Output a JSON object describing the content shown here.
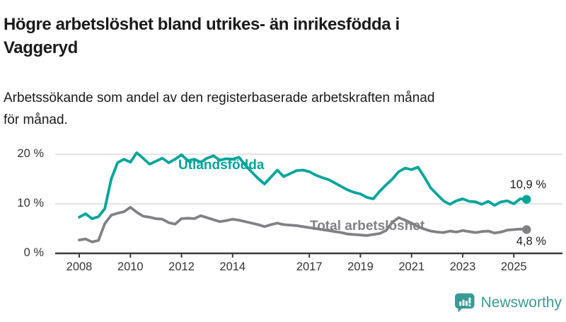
{
  "header": {
    "title_lines": [
      "Högre arbetslöshet bland utrikes- än inrikesfödda i",
      "Vaggeryd"
    ],
    "subtitle_lines": [
      "Arbetssökande som andel av den registerbaserade arbetskraften månad",
      "för månad."
    ]
  },
  "branding": {
    "logo_text": "Newsworthy"
  },
  "colors": {
    "background": "#ffffff",
    "title": "#1a1a1a",
    "grid": "#dcdcdc",
    "axis": "#3b3b3b",
    "tick_label": "#333333",
    "end_label": "#1a1a1a",
    "logo": "#3a9a94"
  },
  "chart_data": {
    "type": "line",
    "title": "Högre arbetslöshet bland utrikes- än inrikesfödda i Vaggeryd",
    "subtitle": "Arbetssökande som andel av den registerbaserade arbetskraften månad för månad.",
    "unit": "%",
    "grid": "horizontal",
    "legend_position": "inline-labels",
    "ylim": [
      0,
      21.5
    ],
    "xlim": [
      2007.1,
      2026.9
    ],
    "y_ticks": [
      {
        "v": 0,
        "label": "0 %"
      },
      {
        "v": 10,
        "label": "10 %"
      },
      {
        "v": 20,
        "label": "20 %"
      }
    ],
    "x_ticks": [
      {
        "v": 2008,
        "label": "2008"
      },
      {
        "v": 2010,
        "label": "2010"
      },
      {
        "v": 2012,
        "label": "2012"
      },
      {
        "v": 2014,
        "label": "2014"
      },
      {
        "v": 2017,
        "label": "2017"
      },
      {
        "v": 2019,
        "label": "2019"
      },
      {
        "v": 2021,
        "label": "2021"
      },
      {
        "v": 2023,
        "label": "2023"
      },
      {
        "v": 2025,
        "label": "2025"
      }
    ],
    "x": [
      2008.0,
      2008.25,
      2008.5,
      2008.75,
      2009.0,
      2009.25,
      2009.5,
      2009.75,
      2010.0,
      2010.25,
      2010.5,
      2010.75,
      2011.0,
      2011.25,
      2011.5,
      2011.75,
      2012.0,
      2012.25,
      2012.5,
      2012.75,
      2013.0,
      2013.25,
      2013.5,
      2013.75,
      2014.0,
      2014.25,
      2014.5,
      2014.75,
      2015.0,
      2015.25,
      2015.5,
      2015.75,
      2016.0,
      2016.25,
      2016.5,
      2016.75,
      2017.0,
      2017.25,
      2017.5,
      2017.75,
      2018.0,
      2018.25,
      2018.5,
      2018.75,
      2019.0,
      2019.25,
      2019.5,
      2019.75,
      2020.0,
      2020.25,
      2020.5,
      2020.75,
      2021.0,
      2021.25,
      2021.5,
      2021.75,
      2022.0,
      2022.25,
      2022.5,
      2022.75,
      2023.0,
      2023.25,
      2023.5,
      2023.75,
      2024.0,
      2024.25,
      2024.5,
      2024.75,
      2025.0,
      2025.25,
      2025.5
    ],
    "series": [
      {
        "id": "utlandsfodda",
        "name": "Utlandsfödda",
        "color": "#00a49a",
        "end_value": 10.9,
        "end_label": "10,9 %",
        "values": [
          7.3,
          8.0,
          7.0,
          7.4,
          9.0,
          15.0,
          18.3,
          19.0,
          18.4,
          20.3,
          19.2,
          18.0,
          18.6,
          19.2,
          18.3,
          19.0,
          19.9,
          18.7,
          19.0,
          18.4,
          19.2,
          19.7,
          18.8,
          19.1,
          19.0,
          19.4,
          17.8,
          16.4,
          15.1,
          14.0,
          15.4,
          16.8,
          15.5,
          16.1,
          16.7,
          16.8,
          16.5,
          15.8,
          15.3,
          14.9,
          14.2,
          13.5,
          12.8,
          12.3,
          12.0,
          11.3,
          11.0,
          12.5,
          13.8,
          15.0,
          16.5,
          17.2,
          16.9,
          17.4,
          15.4,
          13.2,
          11.9,
          10.6,
          9.9,
          10.6,
          11.0,
          10.5,
          10.4,
          9.9,
          10.5,
          9.7,
          10.4,
          10.6,
          10.0,
          11.0,
          10.9
        ]
      },
      {
        "id": "total",
        "name": "Total arbetslöshet",
        "color": "#808085",
        "end_value": 4.8,
        "end_label": "4,8 %",
        "values": [
          2.7,
          2.9,
          2.3,
          2.6,
          6.0,
          7.7,
          8.1,
          8.4,
          9.3,
          8.3,
          7.5,
          7.3,
          7.0,
          6.9,
          6.2,
          5.9,
          7.0,
          7.1,
          7.0,
          7.6,
          7.2,
          6.8,
          6.4,
          6.6,
          6.9,
          6.7,
          6.4,
          6.1,
          5.8,
          5.4,
          5.8,
          6.1,
          5.8,
          5.7,
          5.6,
          5.4,
          5.2,
          5.0,
          4.8,
          4.6,
          4.4,
          4.2,
          3.9,
          3.8,
          3.7,
          3.6,
          3.8,
          4.0,
          4.6,
          6.3,
          7.2,
          6.7,
          6.1,
          5.4,
          4.9,
          4.5,
          4.3,
          4.2,
          4.5,
          4.3,
          4.6,
          4.4,
          4.2,
          4.4,
          4.5,
          4.1,
          4.3,
          4.7,
          4.8,
          4.9,
          4.8
        ]
      }
    ]
  }
}
